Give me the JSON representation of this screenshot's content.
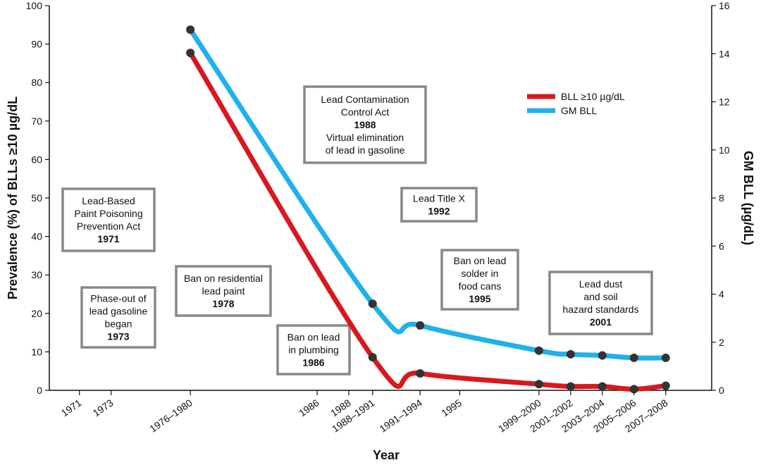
{
  "chart_data": {
    "type": "line",
    "xlabel": "Year",
    "ylabel_left": "Prevalence (%) of BLLs ≥10 µg/dL",
    "ylabel_right": "GM BLL (µg/dL)",
    "y_left_range": [
      0,
      100
    ],
    "y_left_ticks": [
      "0",
      "10",
      "20",
      "30",
      "40",
      "50",
      "60",
      "70",
      "80",
      "90",
      "100"
    ],
    "y_right_range": [
      0,
      16
    ],
    "y_right_ticks": [
      "0",
      "2",
      "4",
      "6",
      "8",
      "10",
      "12",
      "14",
      "16"
    ],
    "x_ticks": [
      "1971",
      "1973",
      "1976–1980",
      "1986",
      "1988",
      "1988–1991",
      "1991–1994",
      "1995",
      "1999–2000",
      "2001–2002",
      "2003–2004",
      "2005–2006",
      "2007–2008"
    ],
    "x_tick_years": [
      1971,
      1973,
      1978,
      1986,
      1988,
      1989.5,
      1992.5,
      1995,
      2000,
      2002,
      2004,
      2006,
      2008
    ],
    "grid": false,
    "legend_position": "top-right",
    "series": [
      {
        "name": "BLL ≥10 µg/dL",
        "axis": "left",
        "color": "#d7191f",
        "x": [
          "1976–1980",
          "1988–1991",
          "1991–1994",
          "1999–2000",
          "2001–2002",
          "2003–2004",
          "2005–2006",
          "2007–2008"
        ],
        "values": [
          87.7,
          8.6,
          4.4,
          1.6,
          1.0,
          1.0,
          0.3,
          1.2
        ]
      },
      {
        "name": "GM BLL",
        "axis": "right",
        "color": "#1fb1ea",
        "x": [
          "1976–1980",
          "1988–1991",
          "1991–1994",
          "1999–2000",
          "2001–2002",
          "2003–2004",
          "2005–2006",
          "2007–2008"
        ],
        "values": [
          15.0,
          3.6,
          2.7,
          1.65,
          1.5,
          1.45,
          1.35,
          1.35
        ]
      }
    ],
    "annotations": [
      {
        "lines": [
          "Lead-Based",
          "Paint Poisoning",
          "Prevention Act"
        ],
        "year": "1971"
      },
      {
        "lines": [
          "Phase-out of",
          "lead gasoline",
          "began"
        ],
        "year": "1973"
      },
      {
        "lines": [
          "Ban on residential",
          "lead paint"
        ],
        "year": "1978"
      },
      {
        "lines": [
          "Ban on lead",
          "in plumbing"
        ],
        "year": "1986"
      },
      {
        "lines": [
          "Lead Contamination",
          "Control Act"
        ],
        "year": "1988",
        "extra": [
          "Virtual elimination",
          "of lead in gasoline"
        ]
      },
      {
        "lines": [
          "Lead Title X"
        ],
        "year": "1992"
      },
      {
        "lines": [
          "Ban on lead",
          "solder in",
          "food cans"
        ],
        "year": "1995"
      },
      {
        "lines": [
          "Lead dust",
          "and soil",
          "hazard standards"
        ],
        "year": "2001"
      }
    ]
  }
}
